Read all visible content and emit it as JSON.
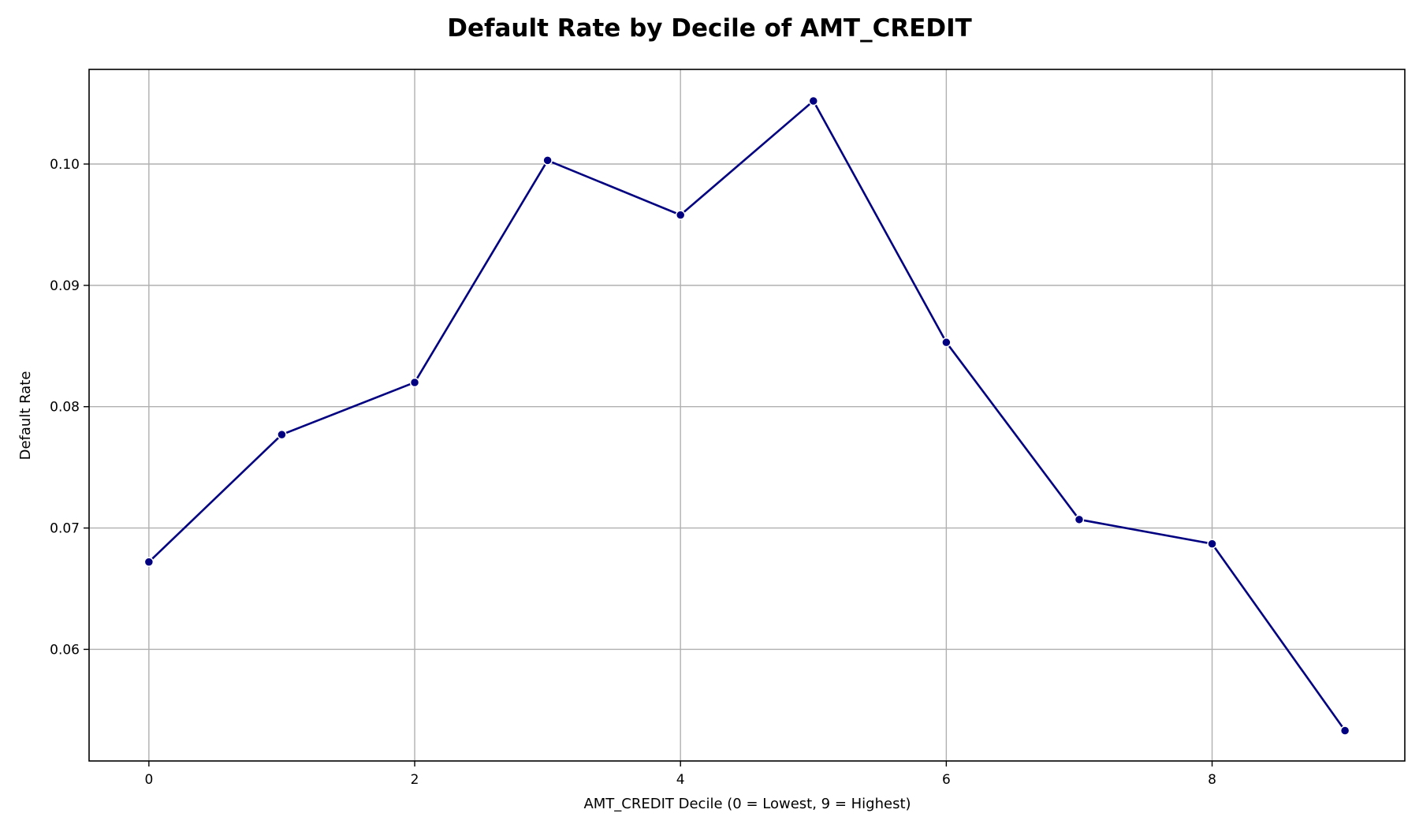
{
  "chart_data": {
    "type": "line",
    "title": "Default Rate by Decile of AMT_CREDIT",
    "xlabel": "AMT_CREDIT Decile (0 = Lowest, 9 = Highest)",
    "ylabel": "Default Rate",
    "x": [
      0,
      1,
      2,
      3,
      4,
      5,
      6,
      7,
      8,
      9
    ],
    "series": [
      {
        "values": [
          0.0672,
          0.0777,
          0.082,
          0.1003,
          0.0958,
          0.1052,
          0.0853,
          0.0707,
          0.0687,
          0.0533
        ],
        "color": "#000080",
        "marker": "circle"
      }
    ],
    "xlim": [
      -0.45,
      9.45
    ],
    "ylim": [
      0.0508,
      0.1078
    ],
    "xticks": [
      0,
      2,
      4,
      6,
      8
    ],
    "xtick_labels": [
      "0",
      "2",
      "4",
      "6",
      "8"
    ],
    "yticks": [
      0.06,
      0.07,
      0.08,
      0.09,
      0.1
    ],
    "ytick_labels": [
      "0.06",
      "0.07",
      "0.08",
      "0.09",
      "0.10"
    ],
    "grid": true,
    "legend": "none"
  }
}
